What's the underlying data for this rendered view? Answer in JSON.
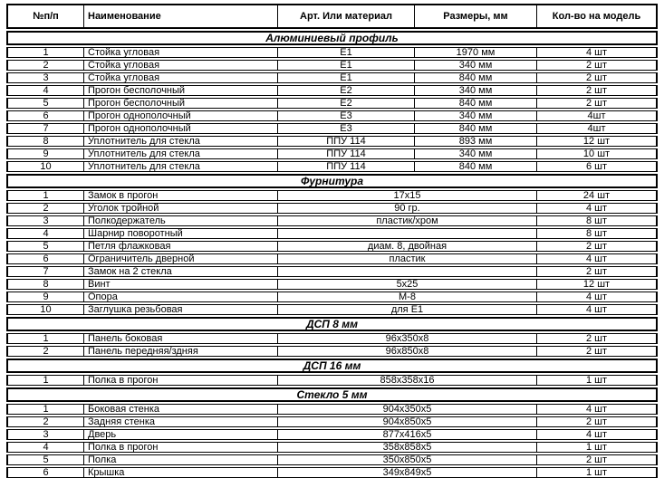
{
  "table": {
    "columns": [
      "№п/п",
      "Наименование",
      "Арт. Или материал",
      "Размеры, мм",
      "Кол-во на модель"
    ],
    "sections": [
      {
        "title": "Алюминиевый профиль",
        "merged_middle": false,
        "rows": [
          [
            "1",
            "Стойка угловая",
            "Е1",
            "1970 мм",
            "4 шт"
          ],
          [
            "2",
            "Стойка угловая",
            "Е1",
            "340 мм",
            "2 шт"
          ],
          [
            "3",
            "Стойка угловая",
            "Е1",
            "840 мм",
            "2 шт"
          ],
          [
            "4",
            "Прогон бесполочный",
            "Е2",
            "340 мм",
            "2 шт"
          ],
          [
            "5",
            "Прогон бесполочный",
            "Е2",
            "840 мм",
            "2 шт"
          ],
          [
            "6",
            "Прогон однополочный",
            "Е3",
            "340 мм",
            "4шт"
          ],
          [
            "7",
            "Прогон однополочный",
            "Е3",
            "840 мм",
            "4шт"
          ],
          [
            "8",
            "Уплотнитель для стекла",
            "ППУ 114",
            "893 мм",
            "12 шт"
          ],
          [
            "9",
            "Уплотнитель для стекла",
            "ППУ 114",
            "340 мм",
            "10 шт"
          ],
          [
            "10",
            "Уплотнитель для стекла",
            "ППУ 114",
            "840 мм",
            "6 шт"
          ]
        ]
      },
      {
        "title": "Фурнитура",
        "merged_middle": true,
        "rows": [
          [
            "1",
            "Замок в прогон",
            "17х15",
            "24 шт"
          ],
          [
            "2",
            "Уголок тройной",
            "90 гр.",
            "4 шт"
          ],
          [
            "3",
            "Полкодержатель",
            "пластик/хром",
            "8 шт"
          ],
          [
            "4",
            "Шарнир поворотный",
            "",
            "8 шт"
          ],
          [
            "5",
            "Петля флажковая",
            "диам. 8, двойная",
            "2 шт"
          ],
          [
            "6",
            "Ограничитель дверной",
            "пластик",
            "4 шт"
          ],
          [
            "7",
            "Замок на 2 стекла",
            "",
            "2 шт"
          ],
          [
            "8",
            "Винт",
            "5х25",
            "12 шт"
          ],
          [
            "9",
            "Опора",
            "М-8",
            "4 шт"
          ],
          [
            "10",
            "Заглушка резьбовая",
            "для Е1",
            "4 шт"
          ]
        ]
      },
      {
        "title": "ДСП 8 мм",
        "merged_middle": true,
        "rows": [
          [
            "1",
            "Панель боковая",
            "96х350х8",
            "2 шт"
          ],
          [
            "2",
            "Панель передняя/здняя",
            "96х850х8",
            "2 шт"
          ]
        ]
      },
      {
        "title": "ДСП 16 мм",
        "merged_middle": true,
        "rows": [
          [
            "1",
            "Полка в прогон",
            "858х358х16",
            "1 шт"
          ]
        ]
      },
      {
        "title": "Стекло 5 мм",
        "merged_middle": true,
        "rows": [
          [
            "1",
            "Боковая стенка",
            "904х350х5",
            "4 шт"
          ],
          [
            "2",
            "Задняя стенка",
            "904х850х5",
            "2 шт"
          ],
          [
            "3",
            "Дверь",
            "877х416х5",
            "4 шт"
          ],
          [
            "4",
            "Полка в прогон",
            "358х858х5",
            "1 шт"
          ],
          [
            "5",
            "Полка",
            "350х850х5",
            "2 шт"
          ],
          [
            "6",
            "Крышка",
            "349х849х5",
            "1 шт"
          ]
        ]
      }
    ]
  }
}
